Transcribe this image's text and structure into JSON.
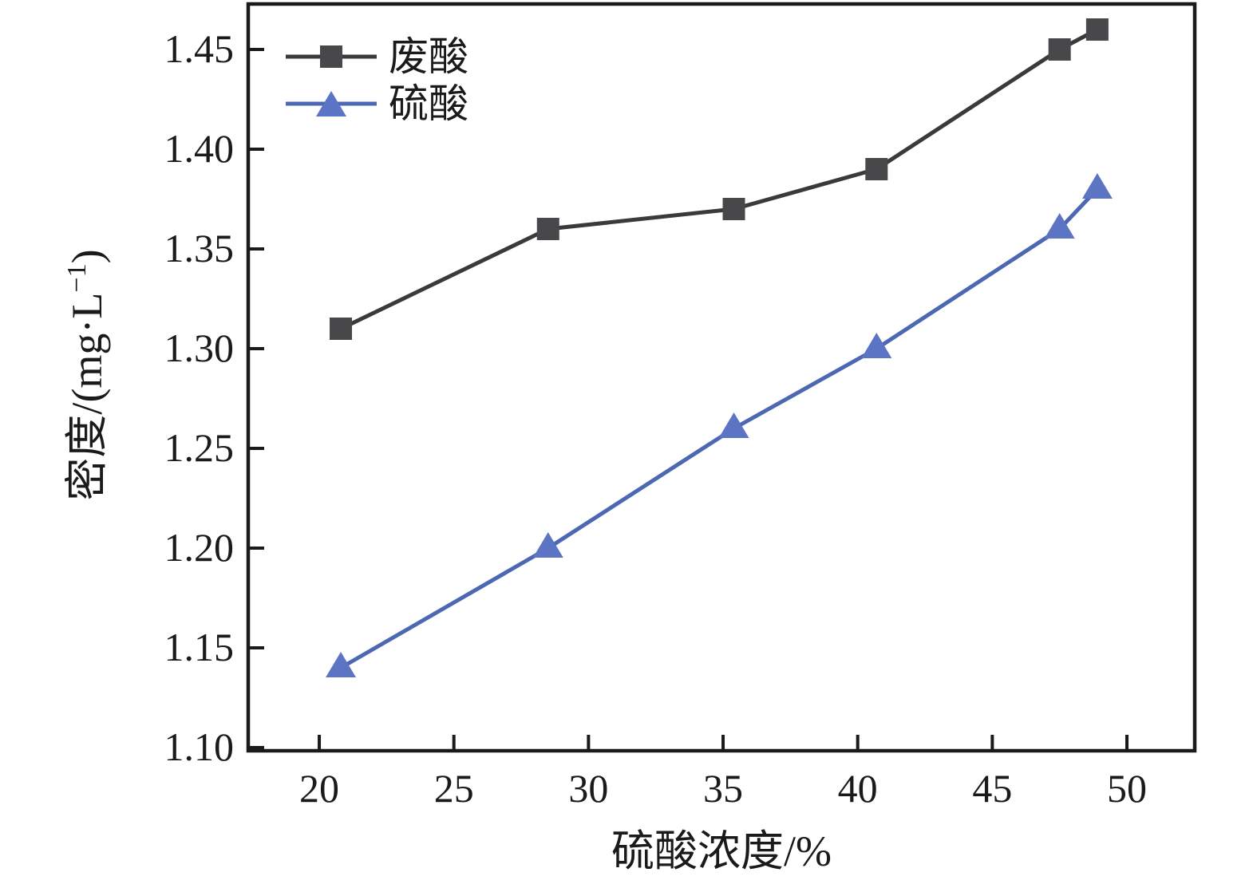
{
  "chart_data": {
    "type": "line",
    "title": "",
    "xlabel": "硫酸浓度/%",
    "ylabel": "密度/(mg·L⁻¹)",
    "ylabel_parts": {
      "pre": "密度/(mg·L",
      "sup": "−1",
      "post": ")"
    },
    "x": [
      20.8,
      28.5,
      35.4,
      40.7,
      47.5,
      48.9
    ],
    "series": [
      {
        "name": "废酸",
        "marker": "square",
        "line_color": "#3a3a3c",
        "marker_color": "#48484a",
        "values": [
          1.31,
          1.36,
          1.37,
          1.39,
          1.45,
          1.46
        ]
      },
      {
        "name": "硫酸",
        "marker": "triangle",
        "line_color": "#4d68b2",
        "marker_color": "#5b74c4",
        "values": [
          1.14,
          1.2,
          1.26,
          1.3,
          1.36,
          1.38
        ]
      }
    ],
    "xticks": [
      20,
      25,
      30,
      35,
      40,
      45,
      50
    ],
    "xtick_labels": [
      "20",
      "25",
      "30",
      "35",
      "40",
      "45",
      "50"
    ],
    "yticks": [
      1.1,
      1.15,
      1.2,
      1.25,
      1.3,
      1.35,
      1.4,
      1.45
    ],
    "ytick_labels": [
      "1.10",
      "1.15",
      "1.20",
      "1.25",
      "1.30",
      "1.35",
      "1.40",
      "1.45"
    ],
    "xlim": [
      17.36,
      52.52
    ],
    "ylim": [
      1.0984,
      1.4728
    ],
    "grid": false,
    "legend_position": "top-left",
    "axis_color": "#1a1a1a",
    "background_color": "#ffffff"
  }
}
